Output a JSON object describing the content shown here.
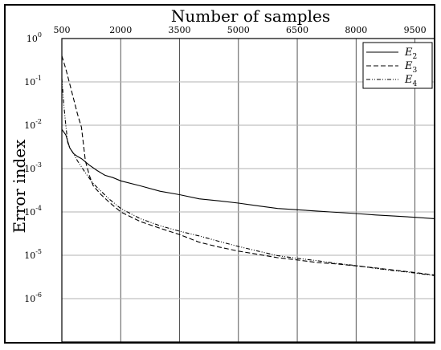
{
  "chart_data": {
    "type": "line",
    "title": "",
    "xlabel": "Number of samples",
    "ylabel": "Error index",
    "x_axis_position": "top",
    "xlim": [
      500,
      10000
    ],
    "xticks": [
      500,
      2000,
      3500,
      5000,
      6500,
      8000,
      9500
    ],
    "xtick_labels": [
      "500",
      "2000",
      "3500",
      "5000",
      "6500",
      "8000",
      "9500"
    ],
    "y_scale": "log",
    "ylim": [
      1e-07,
      1
    ],
    "yticks": [
      1,
      0.1,
      0.01,
      0.001,
      0.0001,
      1e-05,
      1e-06
    ],
    "ytick_labels": [
      {
        "base": "10",
        "exp": "0"
      },
      {
        "base": "10",
        "exp": "-1"
      },
      {
        "base": "10",
        "exp": "-2"
      },
      {
        "base": "10",
        "exp": "-3"
      },
      {
        "base": "10",
        "exp": "-4"
      },
      {
        "base": "10",
        "exp": "-5"
      },
      {
        "base": "10",
        "exp": "-6"
      }
    ],
    "grid": true,
    "legend_position": "top-right",
    "series": [
      {
        "name": "E2",
        "label": {
          "base": "E",
          "sub": "2"
        },
        "style": "solid",
        "points": [
          [
            500,
            0.008
          ],
          [
            600,
            0.006
          ],
          [
            700,
            0.003
          ],
          [
            800,
            0.0022
          ],
          [
            900,
            0.0019
          ],
          [
            1000,
            0.0017
          ],
          [
            1200,
            0.0012
          ],
          [
            1400,
            0.0009
          ],
          [
            1600,
            0.0007
          ],
          [
            1800,
            0.00062
          ],
          [
            2000,
            0.00052
          ],
          [
            2500,
            0.0004
          ],
          [
            3000,
            0.0003
          ],
          [
            3500,
            0.00025
          ],
          [
            4000,
            0.0002
          ],
          [
            4500,
            0.00018
          ],
          [
            5000,
            0.00016
          ],
          [
            5500,
            0.000138
          ],
          [
            6000,
            0.00012
          ],
          [
            6500,
            0.000112
          ],
          [
            7000,
            0.000105
          ],
          [
            7500,
            9.8e-05
          ],
          [
            8000,
            9.2e-05
          ],
          [
            8500,
            8.5e-05
          ],
          [
            9000,
            8e-05
          ],
          [
            9500,
            7.5e-05
          ],
          [
            10000,
            7e-05
          ]
        ]
      },
      {
        "name": "E3",
        "label": {
          "base": "E",
          "sub": "3"
        },
        "style": "dashed",
        "points": [
          [
            500,
            0.4
          ],
          [
            600,
            0.2
          ],
          [
            700,
            0.09
          ],
          [
            800,
            0.04
          ],
          [
            900,
            0.018
          ],
          [
            1000,
            0.009
          ],
          [
            1100,
            0.0015
          ],
          [
            1200,
            0.0007
          ],
          [
            1300,
            0.0004
          ],
          [
            1500,
            0.00025
          ],
          [
            1700,
            0.00017
          ],
          [
            2000,
            0.0001
          ],
          [
            2500,
            6e-05
          ],
          [
            3000,
            4.2e-05
          ],
          [
            3500,
            3e-05
          ],
          [
            4000,
            2e-05
          ],
          [
            4500,
            1.55e-05
          ],
          [
            5000,
            1.25e-05
          ],
          [
            5500,
            1.05e-05
          ],
          [
            6000,
            8.8e-06
          ],
          [
            6500,
            7.8e-06
          ],
          [
            7000,
            6.8e-06
          ],
          [
            7500,
            6.3e-06
          ],
          [
            8000,
            5.7e-06
          ],
          [
            8500,
            5.1e-06
          ],
          [
            9000,
            4.5e-06
          ],
          [
            9500,
            4e-06
          ],
          [
            10000,
            3.5e-06
          ]
        ]
      },
      {
        "name": "E4",
        "label": {
          "base": "E",
          "sub": "4"
        },
        "style": "dashdotdot",
        "points": [
          [
            500,
            0.12
          ],
          [
            550,
            0.03
          ],
          [
            600,
            0.01
          ],
          [
            650,
            0.004
          ],
          [
            700,
            0.003
          ],
          [
            800,
            0.0022
          ],
          [
            900,
            0.0015
          ],
          [
            1000,
            0.0011
          ],
          [
            1100,
            0.0008
          ],
          [
            1200,
            0.0006
          ],
          [
            1300,
            0.00045
          ],
          [
            1500,
            0.0003
          ],
          [
            1700,
            0.0002
          ],
          [
            2000,
            0.00012
          ],
          [
            2500,
            7e-05
          ],
          [
            3000,
            4.8e-05
          ],
          [
            3500,
            3.6e-05
          ],
          [
            4000,
            2.8e-05
          ],
          [
            4500,
            2.1e-05
          ],
          [
            5000,
            1.6e-05
          ],
          [
            5500,
            1.25e-05
          ],
          [
            6000,
            9.8e-06
          ],
          [
            6500,
            8.5e-06
          ],
          [
            7000,
            7.5e-06
          ],
          [
            7500,
            6.5e-06
          ],
          [
            8000,
            5.8e-06
          ],
          [
            8500,
            5e-06
          ],
          [
            9000,
            4.4e-06
          ],
          [
            9500,
            3.9e-06
          ],
          [
            10000,
            3.4e-06
          ]
        ]
      }
    ]
  }
}
